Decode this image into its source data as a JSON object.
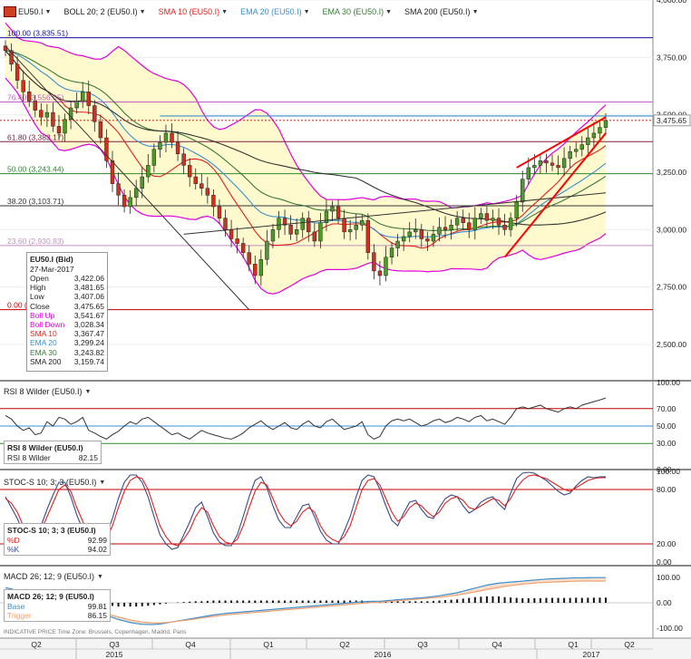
{
  "toolbar": {
    "symbol": "EU50.I",
    "boll": "BOLL 20; 2 (EU50.I)",
    "sma10": "SMA 10 (EU50.I)",
    "ema20": "EMA 20 (EU50.I)",
    "ema30": "EMA 30 (EU50.I)",
    "sma200": "SMA 200 (EU50.I)"
  },
  "colors": {
    "boll": "#e000e0",
    "sma10": "#e02020",
    "ema20": "#3a8fd0",
    "ema30": "#3a7a3a",
    "sma200": "#333333",
    "band_fill": "#fffacd",
    "candle_up": "#4c9a2a",
    "candle_down": "#d03020",
    "fib_blue": "#1010a0",
    "fib_red": "#c00000",
    "fib_green": "#2a8a2a",
    "wedge": "#ff0000",
    "rsi": "#333333",
    "stoc_d": "#e02020",
    "stoc_k": "#3a4a8a",
    "macd_base": "#3a8fd0",
    "macd_trigger": "#f0a070"
  },
  "ohlc_box": {
    "title": "EU50.I (Bid)",
    "date": "27-Mar-2017",
    "rows": [
      {
        "label": "Open",
        "value": "3,422.06",
        "color": "#222"
      },
      {
        "label": "High",
        "value": "3,481.65",
        "color": "#222"
      },
      {
        "label": "Low",
        "value": "3,407.06",
        "color": "#222"
      },
      {
        "label": "Close",
        "value": "3,475.65",
        "color": "#222"
      },
      {
        "label": "Boll Up",
        "value": "3,541.67",
        "color": "#e000e0"
      },
      {
        "label": "Boll Down",
        "value": "3,028.34",
        "color": "#e000e0"
      },
      {
        "label": "SMA 10",
        "value": "3,367.47",
        "color": "#e02020"
      },
      {
        "label": "EMA 20",
        "value": "3,299.24",
        "color": "#3a8fd0"
      },
      {
        "label": "EMA 30",
        "value": "3,243.82",
        "color": "#3a7a3a"
      },
      {
        "label": "SMA 200",
        "value": "3,159.74",
        "color": "#222"
      }
    ]
  },
  "rsi_panel": {
    "label": "RSI 8 Wilder (EU50.I)",
    "box_title": "RSI 8 Wilder (EU50.I)",
    "box_label": "RSI 8 Wilder",
    "box_value": "82.15"
  },
  "stoc_panel": {
    "label": "STOC-S 10; 3; 3 (EU50.I)",
    "box_title": "STOC-S 10; 3; 3 (EU50.I)",
    "d_label": "%D",
    "d_value": "92.99",
    "k_label": "%K",
    "k_value": "94.02"
  },
  "macd_panel": {
    "label": "MACD 26; 12; 9 (EU50.I)",
    "box_title": "MACD 26; 12; 9 (EU50.I)",
    "base_label": "Base",
    "base_value": "99.81",
    "trigger_label": "Trigger",
    "trigger_value": "86.15"
  },
  "footer_text": "INDICATIVE PRICE   Time Zone: Brussels, Copenhagen, Madrid, Paris",
  "chart_data": {
    "type": "candlestick",
    "price_axis": {
      "ticks": [
        "4,000.00",
        "3,750.00",
        "3,500.00",
        "3,250.00",
        "3,000.00",
        "2,750.00",
        "2,500.00"
      ],
      "tick_values": [
        4000,
        3750,
        3500,
        3250,
        3000,
        2750,
        2500
      ],
      "ylim": [
        2350,
        4000
      ],
      "last_price_label": "3,475.65",
      "last_price": 3475.65
    },
    "quarter_labels": [
      "Q2",
      "Q3",
      "Q4",
      "Q1",
      "Q2",
      "Q3",
      "Q4",
      "Q1",
      "Q2"
    ],
    "year_labels": [
      "2015",
      "2016",
      "2017"
    ],
    "fib_levels": [
      {
        "label": "100.00 (3,835.51)",
        "value": 3835.51,
        "color": "#1010a0"
      },
      {
        "label": "76.40 (3,556.05)",
        "value": 3556.05,
        "color": "#c060c0"
      },
      {
        "label": "61.80 (3,383.17)",
        "value": 3383.17,
        "color": "#802040"
      },
      {
        "label": "50.00 (3,243.44)",
        "value": 3243.44,
        "color": "#2a8a2a"
      },
      {
        "label": "38.20 (3,103.71)",
        "value": 3103.71,
        "color": "#333333"
      },
      {
        "label": "23.60 (2,930.83)",
        "value": 2930.83,
        "color": "#c090c0"
      },
      {
        "label": "0.00 (2,651.57)",
        "value": 2651.57,
        "color": "#c00000"
      }
    ],
    "weekly_close": [
      3780,
      3720,
      3650,
      3600,
      3560,
      3520,
      3490,
      3510,
      3450,
      3420,
      3480,
      3530,
      3560,
      3600,
      3540,
      3470,
      3400,
      3300,
      3200,
      3150,
      3100,
      3140,
      3180,
      3230,
      3280,
      3350,
      3380,
      3420,
      3380,
      3330,
      3280,
      3230,
      3200,
      3180,
      3150,
      3100,
      3050,
      3000,
      2960,
      2940,
      2900,
      2850,
      2800,
      2870,
      2950,
      3000,
      3050,
      3020,
      2980,
      3000,
      3050,
      2990,
      2950,
      3030,
      3080,
      3100,
      3050,
      2990,
      3000,
      3020,
      3040,
      2900,
      2820,
      2800,
      2880,
      2920,
      2950,
      2970,
      2990,
      3000,
      2960,
      2950,
      2980,
      3010,
      3000,
      3020,
      3050,
      3030,
      3000,
      3050,
      3070,
      3040,
      3050,
      3020,
      3000,
      3050,
      3120,
      3220,
      3270,
      3280,
      3300,
      3290,
      3280,
      3270,
      3310,
      3340,
      3350,
      3370,
      3400,
      3420,
      3445,
      3475.65
    ],
    "rsi": {
      "ticks": [
        "100.00",
        "70.00",
        "50.00",
        "30.00",
        "0.00"
      ],
      "tick_values": [
        100,
        70,
        50,
        30,
        0
      ],
      "overbought": 70,
      "midline": 50,
      "oversold": 30,
      "values": [
        62,
        58,
        50,
        45,
        48,
        40,
        42,
        55,
        50,
        60,
        58,
        52,
        55,
        60,
        45,
        42,
        38,
        35,
        40,
        44,
        50,
        55,
        52,
        58,
        60,
        55,
        50,
        45,
        40,
        42,
        38,
        35,
        40,
        45,
        42,
        40,
        38,
        36,
        35,
        38,
        42,
        48,
        52,
        56,
        50,
        46,
        50,
        54,
        48,
        46,
        52,
        56,
        50,
        48,
        55,
        58,
        52,
        46,
        48,
        50,
        55,
        40,
        35,
        38,
        50,
        56,
        58,
        56,
        58,
        54,
        50,
        52,
        56,
        58,
        54,
        56,
        60,
        58,
        55,
        60,
        62,
        56,
        58,
        55,
        52,
        60,
        70,
        72,
        70,
        72,
        74,
        70,
        68,
        66,
        70,
        72,
        70,
        74,
        76,
        78,
        80,
        82.15
      ]
    },
    "stoc": {
      "ticks": [
        "100.00",
        "80.00",
        "20.00",
        "0.00"
      ],
      "tick_values": [
        100,
        80,
        20,
        0
      ],
      "upper": 80,
      "lower": 20,
      "d": [
        70,
        65,
        55,
        40,
        30,
        25,
        35,
        50,
        65,
        80,
        85,
        78,
        60,
        45,
        30,
        20,
        18,
        25,
        40,
        60,
        78,
        90,
        94,
        92,
        80,
        60,
        40,
        28,
        20,
        18,
        25,
        35,
        50,
        60,
        55,
        40,
        28,
        22,
        20,
        25,
        40,
        60,
        78,
        88,
        85,
        70,
        55,
        45,
        40,
        45,
        55,
        60,
        55,
        40,
        30,
        25,
        22,
        28,
        40,
        60,
        80,
        90,
        92,
        85,
        70,
        55,
        45,
        50,
        60,
        65,
        62,
        55,
        50,
        55,
        65,
        70,
        72,
        68,
        60,
        58,
        62,
        66,
        70,
        68,
        62,
        70,
        82,
        90,
        95,
        96,
        94,
        92,
        88,
        84,
        80,
        78,
        82,
        86,
        90,
        92,
        93,
        92.99
      ],
      "k": [
        72,
        60,
        48,
        32,
        22,
        22,
        40,
        58,
        74,
        88,
        88,
        72,
        52,
        36,
        22,
        14,
        16,
        30,
        48,
        70,
        88,
        96,
        96,
        88,
        72,
        50,
        30,
        20,
        14,
        16,
        30,
        44,
        60,
        66,
        50,
        32,
        22,
        18,
        18,
        30,
        50,
        72,
        90,
        94,
        82,
        62,
        46,
        38,
        38,
        50,
        62,
        64,
        50,
        34,
        24,
        20,
        20,
        34,
        50,
        72,
        90,
        96,
        94,
        80,
        62,
        46,
        40,
        54,
        66,
        68,
        58,
        50,
        48,
        60,
        70,
        74,
        72,
        62,
        54,
        58,
        66,
        70,
        72,
        64,
        58,
        76,
        92,
        98,
        99,
        98,
        94,
        90,
        84,
        78,
        74,
        76,
        84,
        90,
        94,
        93,
        94,
        94.02
      ]
    },
    "macd": {
      "ticks": [
        "100.00",
        "0.00",
        "-100.00"
      ],
      "tick_values": [
        100,
        0,
        -100
      ],
      "base": [
        60,
        55,
        48,
        40,
        30,
        20,
        10,
        0,
        -10,
        -20,
        -25,
        -30,
        -32,
        -35,
        -38,
        -40,
        -45,
        -50,
        -58,
        -66,
        -72,
        -78,
        -82,
        -85,
        -86,
        -86,
        -84,
        -80,
        -76,
        -72,
        -68,
        -64,
        -60,
        -56,
        -52,
        -48,
        -45,
        -42,
        -40,
        -38,
        -36,
        -34,
        -32,
        -30,
        -28,
        -26,
        -24,
        -22,
        -20,
        -18,
        -16,
        -14,
        -12,
        -10,
        -8,
        -6,
        -4,
        -2,
        0,
        2,
        4,
        5,
        6,
        6,
        8,
        10,
        12,
        14,
        16,
        18,
        20,
        22,
        25,
        28,
        32,
        36,
        40,
        46,
        52,
        58,
        64,
        70,
        74,
        78,
        80,
        82,
        84,
        86,
        88,
        90,
        92,
        94,
        95,
        96,
        97,
        98,
        99,
        99,
        99.5,
        99.8,
        99.8,
        99.81
      ],
      "trigger": [
        50,
        48,
        45,
        42,
        38,
        32,
        26,
        20,
        12,
        4,
        -4,
        -12,
        -20,
        -26,
        -32,
        -36,
        -40,
        -44,
        -50,
        -56,
        -62,
        -68,
        -72,
        -76,
        -78,
        -80,
        -80,
        -78,
        -76,
        -73,
        -70,
        -67,
        -64,
        -60,
        -57,
        -54,
        -51,
        -48,
        -46,
        -44,
        -42,
        -40,
        -38,
        -36,
        -34,
        -32,
        -30,
        -28,
        -26,
        -24,
        -22,
        -20,
        -18,
        -16,
        -14,
        -12,
        -10,
        -8,
        -6,
        -4,
        -2,
        0,
        2,
        3,
        4,
        6,
        8,
        10,
        12,
        14,
        16,
        18,
        20,
        22,
        25,
        28,
        31,
        35,
        39,
        43,
        48,
        53,
        57,
        61,
        65,
        68,
        71,
        74,
        76,
        78,
        80,
        81,
        82,
        83,
        84,
        85,
        85.5,
        86,
        86.1,
        86.15,
        86.15,
        86.15
      ]
    }
  }
}
